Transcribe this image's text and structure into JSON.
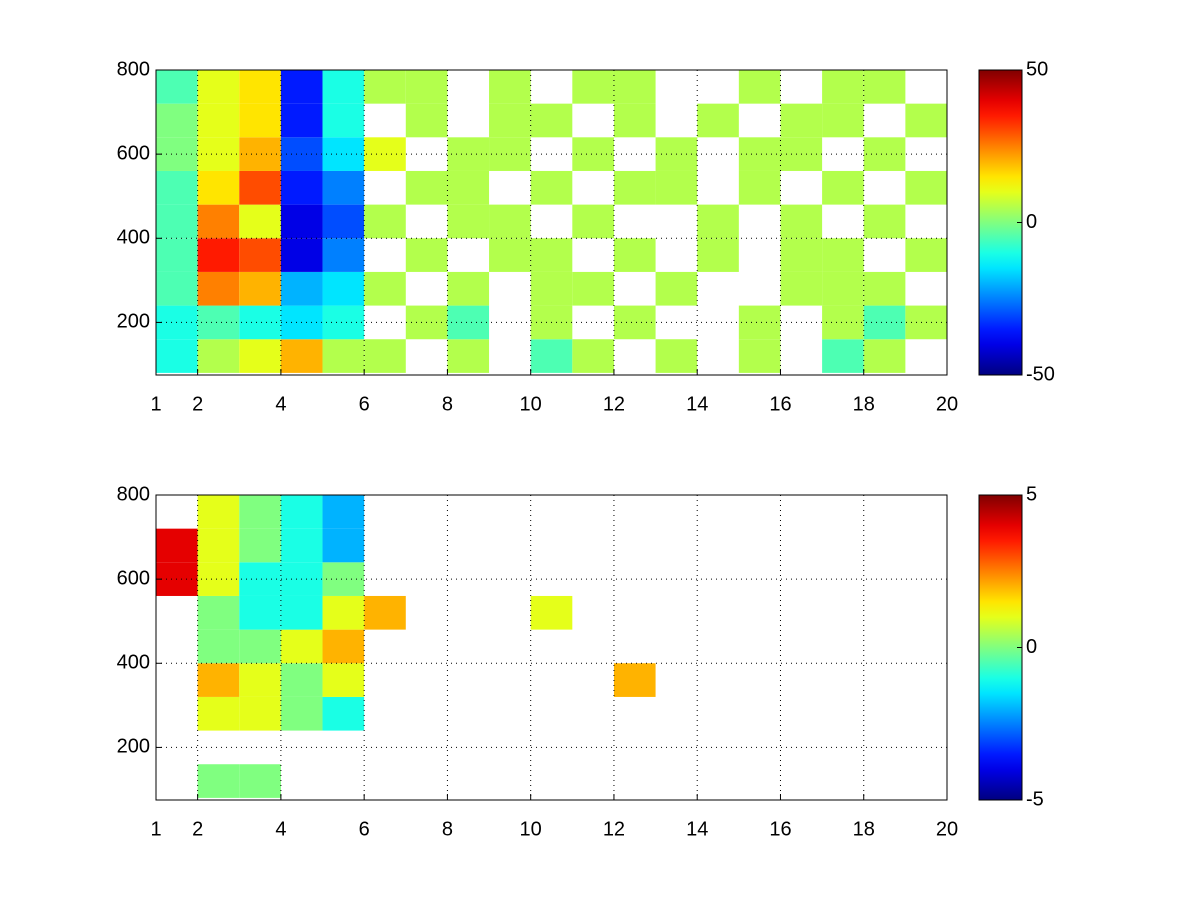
{
  "chart_data": [
    {
      "type": "heatmap",
      "colormap": "jet",
      "grid": true,
      "xbins": [
        1,
        2,
        3,
        4,
        5,
        6,
        7,
        8,
        9,
        10,
        11,
        12,
        13,
        14,
        15,
        16,
        17,
        18,
        19,
        20
      ],
      "ybins": [
        80,
        160,
        240,
        320,
        400,
        480,
        560,
        640,
        720,
        800
      ],
      "z": [
        [
          -10,
          5,
          10,
          20,
          5,
          5,
          null,
          5,
          null,
          -5,
          5,
          null,
          5,
          null,
          5,
          null,
          -5,
          5,
          null
        ],
        [
          -10,
          -5,
          -10,
          -15,
          -10,
          null,
          5,
          -5,
          null,
          5,
          null,
          5,
          null,
          null,
          5,
          null,
          5,
          -5,
          5
        ],
        [
          -5,
          25,
          20,
          -20,
          -15,
          5,
          null,
          5,
          null,
          5,
          5,
          null,
          5,
          null,
          null,
          5,
          5,
          5,
          null
        ],
        [
          -5,
          35,
          30,
          -40,
          -25,
          null,
          5,
          null,
          5,
          5,
          null,
          5,
          null,
          5,
          null,
          5,
          5,
          null,
          5
        ],
        [
          -5,
          25,
          10,
          -40,
          -30,
          5,
          null,
          5,
          5,
          null,
          5,
          null,
          null,
          5,
          null,
          5,
          null,
          5,
          null
        ],
        [
          -5,
          15,
          30,
          -35,
          -25,
          null,
          5,
          5,
          null,
          5,
          null,
          5,
          5,
          null,
          5,
          null,
          5,
          null,
          5
        ],
        [
          0,
          10,
          20,
          -30,
          -15,
          10,
          null,
          5,
          5,
          null,
          5,
          null,
          5,
          null,
          5,
          5,
          null,
          5,
          null
        ],
        [
          0,
          10,
          15,
          -35,
          -10,
          null,
          5,
          null,
          5,
          5,
          null,
          5,
          null,
          5,
          null,
          5,
          5,
          null,
          5
        ],
        [
          -5,
          10,
          15,
          -35,
          -10,
          5,
          5,
          null,
          5,
          null,
          5,
          5,
          null,
          null,
          5,
          null,
          5,
          5,
          null
        ]
      ],
      "xlim": [
        1,
        20
      ],
      "xticks": [
        1,
        2,
        4,
        6,
        8,
        10,
        12,
        14,
        16,
        18,
        20
      ],
      "ylim": [
        75,
        800
      ],
      "yticks": [
        200,
        400,
        600,
        800
      ],
      "clim": [
        -50,
        50
      ],
      "cticks": [
        -50,
        0,
        50
      ]
    },
    {
      "type": "heatmap",
      "colormap": "jet",
      "grid": true,
      "xbins": [
        1,
        2,
        3,
        4,
        5,
        6,
        7,
        8,
        9,
        10,
        11,
        12,
        13,
        14,
        15,
        16,
        17,
        18,
        19,
        20
      ],
      "ybins": [
        80,
        160,
        240,
        320,
        400,
        480,
        560,
        640,
        720,
        800
      ],
      "z": [
        [
          null,
          0,
          0,
          null,
          null,
          null,
          null,
          null,
          null,
          null,
          null,
          null,
          null,
          null,
          null,
          null,
          null,
          null,
          null
        ],
        [
          null,
          null,
          null,
          null,
          null,
          null,
          null,
          null,
          null,
          null,
          null,
          null,
          null,
          null,
          null,
          null,
          null,
          null,
          null
        ],
        [
          null,
          1,
          1,
          0,
          -1,
          null,
          null,
          null,
          null,
          null,
          null,
          null,
          null,
          null,
          null,
          null,
          null,
          null,
          null
        ],
        [
          null,
          2,
          1,
          0,
          1,
          null,
          null,
          null,
          null,
          null,
          null,
          2,
          null,
          null,
          null,
          null,
          null,
          null,
          null
        ],
        [
          null,
          0,
          0,
          1,
          2,
          null,
          null,
          null,
          null,
          null,
          null,
          null,
          null,
          null,
          null,
          null,
          null,
          null,
          null
        ],
        [
          null,
          0,
          -1,
          -1,
          1,
          2,
          null,
          null,
          null,
          1,
          null,
          null,
          null,
          null,
          null,
          null,
          null,
          null,
          null
        ],
        [
          4,
          1,
          -1,
          -1,
          0,
          null,
          null,
          null,
          null,
          null,
          null,
          null,
          null,
          null,
          null,
          null,
          null,
          null,
          null
        ],
        [
          4,
          1,
          0,
          -1,
          -2,
          null,
          null,
          null,
          null,
          null,
          null,
          null,
          null,
          null,
          null,
          null,
          null,
          null,
          null
        ],
        [
          null,
          1,
          0,
          -1,
          -2,
          null,
          null,
          null,
          null,
          null,
          null,
          null,
          null,
          null,
          null,
          null,
          null,
          null,
          null
        ]
      ],
      "xlim": [
        1,
        20
      ],
      "xticks": [
        1,
        2,
        4,
        6,
        8,
        10,
        12,
        14,
        16,
        18,
        20
      ],
      "ylim": [
        75,
        800
      ],
      "yticks": [
        200,
        400,
        600,
        800
      ],
      "clim": [
        -5,
        5
      ],
      "cticks": [
        -5,
        0,
        5
      ]
    }
  ]
}
